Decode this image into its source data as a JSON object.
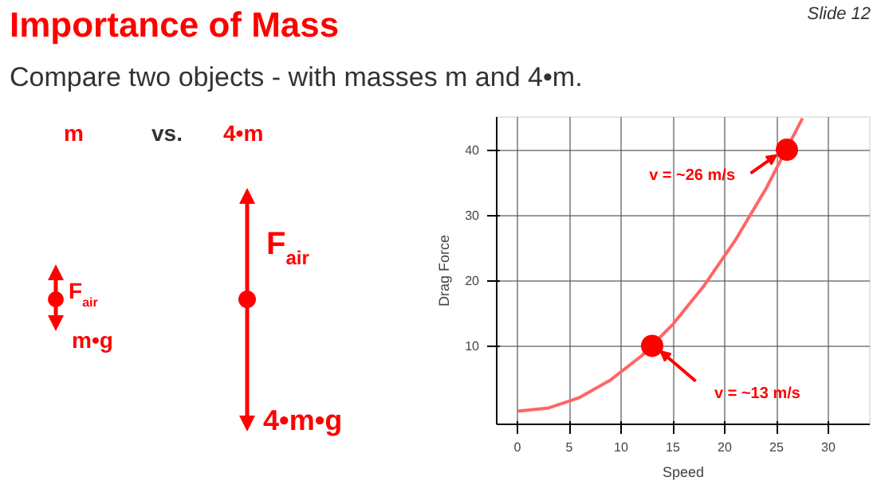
{
  "chart_data": {
    "type": "line",
    "title": "Importance of Mass",
    "subtitle": "Compare two objects - with masses m and 4•m.",
    "xlabel": "Speed",
    "ylabel": "Drag Force",
    "x": [
      0,
      3,
      6,
      9,
      12,
      15,
      18,
      21,
      24,
      27.5
    ],
    "series": [
      {
        "color": "#ff6666",
        "values": [
          0,
          0.5,
          2.1,
          4.8,
          8.5,
          13.3,
          19.2,
          26.1,
          34.1,
          44.8
        ]
      },
      {
        "type": "scatter",
        "marker": "circle",
        "color": "#ff0000",
        "x": [
          13,
          26
        ],
        "values": [
          10,
          40
        ]
      }
    ],
    "xlim": [
      -2,
      34
    ],
    "ylim": [
      -2,
      45
    ],
    "xticks": [
      0,
      5,
      10,
      15,
      20,
      25,
      30
    ],
    "yticks": [
      10,
      20,
      30,
      40
    ],
    "grid": true,
    "annotations": [
      {
        "text": "v = ~13 m/s",
        "x": 13,
        "y": 10
      },
      {
        "text": "v = ~26 m/s",
        "x": 26,
        "y": 40
      },
      "Slide 12",
      "m",
      "vs.",
      "4•m",
      "F$_{air}$",
      "m•g",
      "F$_{air}$",
      "4•m•g"
    ]
  }
}
